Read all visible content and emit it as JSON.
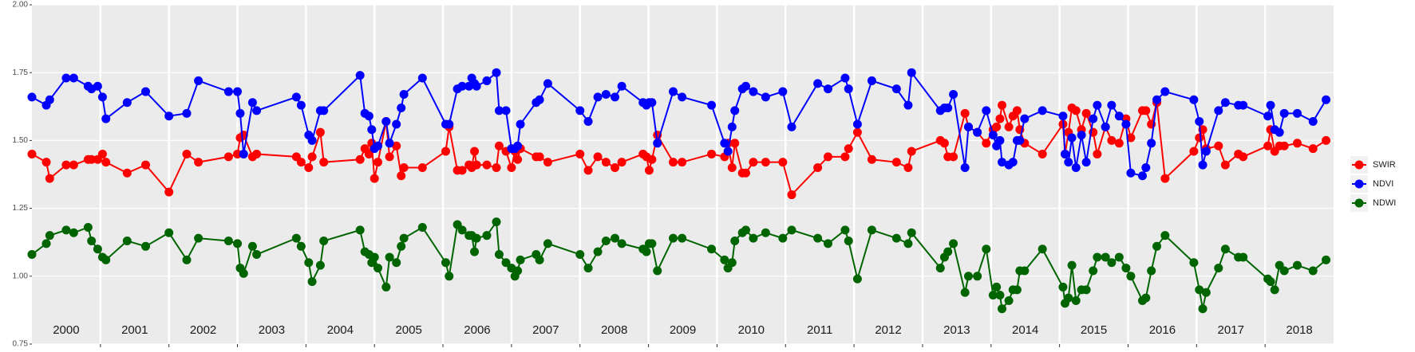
{
  "chart_data": {
    "type": "line",
    "x": [
      2000.0,
      2000.21,
      2000.26,
      2000.5,
      2000.61,
      2000.82,
      2000.87,
      2000.96,
      2001.03,
      2001.08,
      2001.39,
      2001.66,
      2002.0,
      2002.26,
      2002.43,
      2002.87,
      2003.0,
      2003.04,
      2003.09,
      2003.22,
      2003.28,
      2003.86,
      2003.93,
      2004.04,
      2004.09,
      2004.21,
      2004.26,
      2004.79,
      2004.86,
      2004.92,
      2004.96,
      2005.0,
      2005.05,
      2005.17,
      2005.22,
      2005.32,
      2005.39,
      2005.43,
      2005.7,
      2006.04,
      2006.09,
      2006.21,
      2006.28,
      2006.38,
      2006.42,
      2006.46,
      2006.49,
      2006.64,
      2006.78,
      2006.82,
      2006.92,
      2007.0,
      2007.05,
      2007.09,
      2007.13,
      2007.36,
      2007.41,
      2007.53,
      2008.0,
      2008.12,
      2008.26,
      2008.38,
      2008.51,
      2008.61,
      2008.92,
      2008.97,
      2009.01,
      2009.05,
      2009.13,
      2009.36,
      2009.49,
      2009.92,
      2010.11,
      2010.16,
      2010.22,
      2010.26,
      2010.37,
      2010.42,
      2010.53,
      2010.71,
      2010.96,
      2011.09,
      2011.47,
      2011.62,
      2011.87,
      2011.92,
      2012.05,
      2012.26,
      2012.62,
      2012.79,
      2012.84,
      2013.26,
      2013.32,
      2013.37,
      2013.45,
      2013.62,
      2013.67,
      2013.8,
      2013.93,
      2014.03,
      2014.08,
      2014.13,
      2014.16,
      2014.26,
      2014.32,
      2014.38,
      2014.42,
      2014.49,
      2014.75,
      2015.05,
      2015.08,
      2015.13,
      2015.18,
      2015.24,
      2015.32,
      2015.39,
      2015.49,
      2015.55,
      2015.67,
      2015.76,
      2015.87,
      2015.97,
      2016.04,
      2016.21,
      2016.26,
      2016.34,
      2016.42,
      2016.54,
      2016.96,
      2017.04,
      2017.09,
      2017.14,
      2017.32,
      2017.42,
      2017.61,
      2017.68,
      2018.04,
      2018.08,
      2018.14,
      2018.21,
      2018.28,
      2018.47,
      2018.7,
      2018.89
    ],
    "series": [
      {
        "name": "SWIR",
        "color": "#ff0000",
        "values": [
          1.45,
          1.42,
          1.36,
          1.41,
          1.41,
          1.43,
          1.43,
          1.43,
          1.45,
          1.42,
          1.38,
          1.41,
          1.31,
          1.45,
          1.42,
          1.44,
          1.45,
          1.51,
          1.52,
          1.44,
          1.45,
          1.44,
          1.42,
          1.4,
          1.44,
          1.53,
          1.42,
          1.43,
          1.47,
          1.45,
          1.49,
          1.36,
          1.42,
          1.57,
          1.44,
          1.48,
          1.37,
          1.4,
          1.4,
          1.46,
          1.55,
          1.39,
          1.39,
          1.41,
          1.4,
          1.46,
          1.41,
          1.41,
          1.4,
          1.48,
          1.46,
          1.4,
          1.46,
          1.43,
          1.47,
          1.44,
          1.44,
          1.42,
          1.45,
          1.39,
          1.44,
          1.42,
          1.4,
          1.42,
          1.45,
          1.44,
          1.39,
          1.43,
          1.52,
          1.42,
          1.42,
          1.45,
          1.44,
          1.49,
          1.4,
          1.49,
          1.38,
          1.38,
          1.42,
          1.42,
          1.42,
          1.3,
          1.4,
          1.44,
          1.44,
          1.47,
          1.53,
          1.43,
          1.42,
          1.4,
          1.46,
          1.5,
          1.49,
          1.44,
          1.44,
          1.6,
          1.55,
          1.53,
          1.49,
          1.54,
          1.55,
          1.58,
          1.63,
          1.55,
          1.59,
          1.61,
          1.54,
          1.49,
          1.45,
          1.56,
          1.45,
          1.53,
          1.62,
          1.61,
          1.54,
          1.6,
          1.53,
          1.45,
          1.55,
          1.5,
          1.49,
          1.58,
          1.51,
          1.61,
          1.61,
          1.56,
          1.64,
          1.36,
          1.46,
          1.51,
          1.54,
          1.47,
          1.48,
          1.41,
          1.45,
          1.44,
          1.48,
          1.54,
          1.46,
          1.48,
          1.48,
          1.49,
          1.47,
          1.5
        ]
      },
      {
        "name": "NDVI",
        "color": "#0000ff",
        "values": [
          1.66,
          1.63,
          1.65,
          1.73,
          1.73,
          1.7,
          1.69,
          1.7,
          1.66,
          1.58,
          1.64,
          1.68,
          1.59,
          1.6,
          1.72,
          1.68,
          1.68,
          1.6,
          1.45,
          1.64,
          1.61,
          1.66,
          1.63,
          1.52,
          1.5,
          1.61,
          1.61,
          1.74,
          1.6,
          1.59,
          1.54,
          1.47,
          1.48,
          1.57,
          1.49,
          1.56,
          1.62,
          1.67,
          1.73,
          1.56,
          1.56,
          1.69,
          1.7,
          1.7,
          1.73,
          1.71,
          1.7,
          1.72,
          1.75,
          1.61,
          1.61,
          1.47,
          1.47,
          1.48,
          1.56,
          1.64,
          1.65,
          1.71,
          1.61,
          1.57,
          1.66,
          1.67,
          1.66,
          1.7,
          1.64,
          1.63,
          1.64,
          1.64,
          1.49,
          1.68,
          1.66,
          1.63,
          1.49,
          1.46,
          1.55,
          1.61,
          1.69,
          1.7,
          1.68,
          1.66,
          1.68,
          1.55,
          1.71,
          1.69,
          1.73,
          1.69,
          1.56,
          1.72,
          1.69,
          1.63,
          1.75,
          1.61,
          1.62,
          1.62,
          1.67,
          1.4,
          1.55,
          1.53,
          1.61,
          1.52,
          1.48,
          1.5,
          1.42,
          1.41,
          1.42,
          1.5,
          1.5,
          1.58,
          1.61,
          1.59,
          1.45,
          1.42,
          1.51,
          1.4,
          1.52,
          1.42,
          1.58,
          1.63,
          1.55,
          1.63,
          1.59,
          1.56,
          1.38,
          1.37,
          1.4,
          1.49,
          1.65,
          1.68,
          1.65,
          1.57,
          1.41,
          1.46,
          1.61,
          1.64,
          1.63,
          1.63,
          1.59,
          1.63,
          1.54,
          1.53,
          1.6,
          1.6,
          1.57,
          1.65
        ]
      },
      {
        "name": "NDWI",
        "color": "#006400",
        "values": [
          1.08,
          1.12,
          1.15,
          1.17,
          1.16,
          1.18,
          1.13,
          1.1,
          1.07,
          1.06,
          1.13,
          1.11,
          1.16,
          1.06,
          1.14,
          1.13,
          1.12,
          1.03,
          1.01,
          1.11,
          1.08,
          1.14,
          1.11,
          1.05,
          0.98,
          1.04,
          1.13,
          1.17,
          1.09,
          1.08,
          1.05,
          1.07,
          1.03,
          0.96,
          1.07,
          1.05,
          1.11,
          1.14,
          1.18,
          1.05,
          1.0,
          1.19,
          1.17,
          1.15,
          1.15,
          1.09,
          1.14,
          1.15,
          1.2,
          1.08,
          1.05,
          1.03,
          1.0,
          1.02,
          1.06,
          1.08,
          1.06,
          1.12,
          1.08,
          1.03,
          1.09,
          1.13,
          1.14,
          1.12,
          1.1,
          1.09,
          1.12,
          1.12,
          1.02,
          1.14,
          1.14,
          1.1,
          1.06,
          1.03,
          1.05,
          1.13,
          1.16,
          1.17,
          1.14,
          1.16,
          1.14,
          1.17,
          1.14,
          1.12,
          1.17,
          1.13,
          0.99,
          1.17,
          1.14,
          1.12,
          1.16,
          1.03,
          1.07,
          1.09,
          1.12,
          0.94,
          1.0,
          1.0,
          1.1,
          0.93,
          0.96,
          0.93,
          0.88,
          0.91,
          0.95,
          0.95,
          1.02,
          1.02,
          1.1,
          0.96,
          0.9,
          0.92,
          1.04,
          0.91,
          0.95,
          0.95,
          1.02,
          1.07,
          1.07,
          1.05,
          1.07,
          1.03,
          1.0,
          0.91,
          0.92,
          1.02,
          1.11,
          1.15,
          1.05,
          0.95,
          0.88,
          0.94,
          1.03,
          1.1,
          1.07,
          1.07,
          0.99,
          0.98,
          0.95,
          1.04,
          1.02,
          1.04,
          1.02,
          1.06
        ]
      }
    ],
    "xlim": [
      2000,
      2019
    ],
    "xticks": [
      {
        "value": 2000.5,
        "label": "2000"
      },
      {
        "value": 2001.5,
        "label": "2001"
      },
      {
        "value": 2002.5,
        "label": "2002"
      },
      {
        "value": 2003.5,
        "label": "2003"
      },
      {
        "value": 2004.5,
        "label": "2004"
      },
      {
        "value": 2005.5,
        "label": "2005"
      },
      {
        "value": 2006.5,
        "label": "2006"
      },
      {
        "value": 2007.5,
        "label": "2007"
      },
      {
        "value": 2008.5,
        "label": "2008"
      },
      {
        "value": 2009.5,
        "label": "2009"
      },
      {
        "value": 2010.5,
        "label": "2010"
      },
      {
        "value": 2011.5,
        "label": "2011"
      },
      {
        "value": 2012.5,
        "label": "2012"
      },
      {
        "value": 2013.5,
        "label": "2013"
      },
      {
        "value": 2014.5,
        "label": "2014"
      },
      {
        "value": 2015.5,
        "label": "2015"
      },
      {
        "value": 2016.5,
        "label": "2016"
      },
      {
        "value": 2017.5,
        "label": "2017"
      },
      {
        "value": 2018.5,
        "label": "2018"
      }
    ],
    "year_lines": [
      2001,
      2002,
      2003,
      2004,
      2005,
      2006,
      2007,
      2008,
      2009,
      2010,
      2011,
      2012,
      2013,
      2014,
      2015,
      2016,
      2017,
      2018
    ],
    "ylim": [
      0.75,
      2.0
    ],
    "yticks": [
      {
        "value": 0.75,
        "label": "0.75"
      },
      {
        "value": 1.0,
        "label": "1.00"
      },
      {
        "value": 1.25,
        "label": "1.25"
      },
      {
        "value": 1.5,
        "label": "1.50"
      },
      {
        "value": 1.75,
        "label": "1.75"
      },
      {
        "value": 2.0,
        "label": "2.00"
      }
    ],
    "grid": true,
    "legend": "right"
  }
}
